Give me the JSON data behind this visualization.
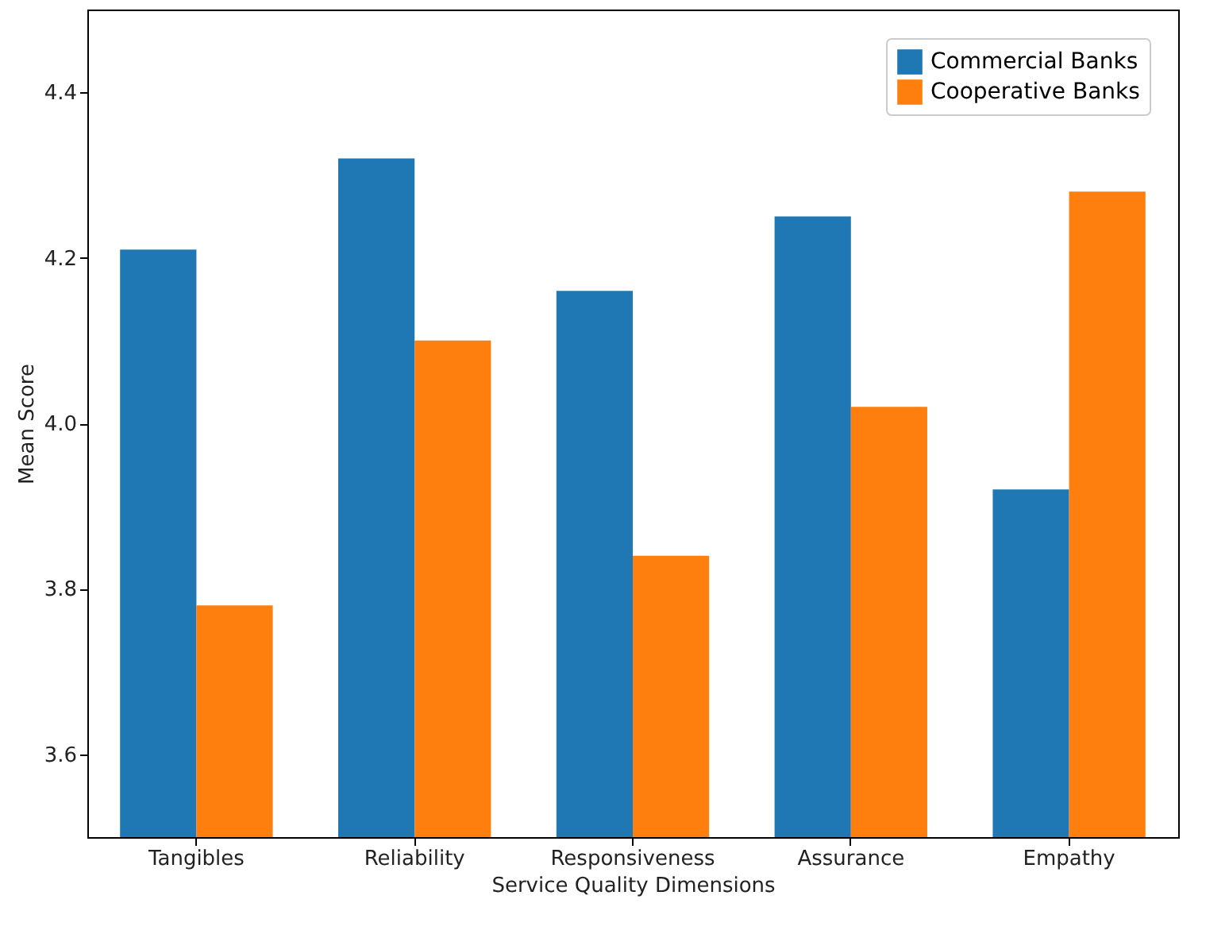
{
  "chart_data": {
    "type": "bar",
    "xlabel": "Service Quality Dimensions",
    "ylabel": "Mean Score",
    "categories": [
      "Tangibles",
      "Reliability",
      "Responsiveness",
      "Assurance",
      "Empathy"
    ],
    "series": [
      {
        "name": "Commercial Banks",
        "color": "#1f77b4",
        "values": [
          4.21,
          4.32,
          4.16,
          4.25,
          3.92
        ]
      },
      {
        "name": "Cooperative Banks",
        "color": "#ff7f0e",
        "values": [
          3.78,
          4.1,
          3.84,
          4.02,
          4.28
        ]
      }
    ],
    "ylim": [
      3.5,
      4.5
    ],
    "yticks": [
      3.6,
      3.8,
      {
        "value": 4,
        "label": "4.0"
      },
      4.2,
      4.4
    ],
    "grid": false,
    "legend": "top right"
  }
}
